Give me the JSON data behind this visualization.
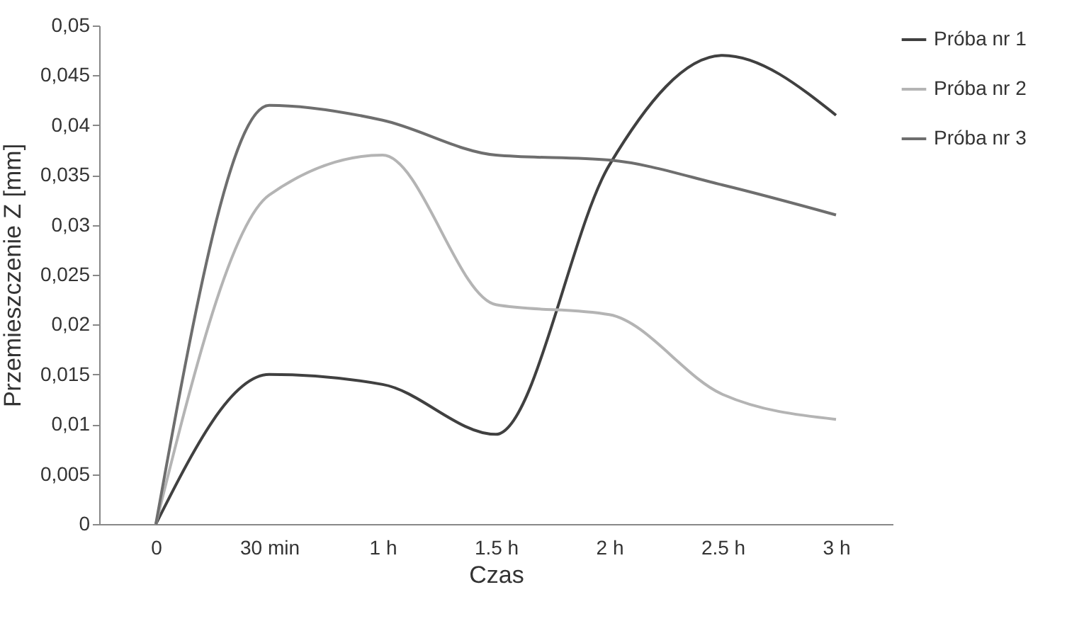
{
  "chart_data": {
    "type": "line",
    "xlabel": "Czas",
    "ylabel": "Przemieszczenie Z [mm]",
    "categories": [
      "0",
      "30 min",
      "1 h",
      "1.5 h",
      "2 h",
      "2.5 h",
      "3 h"
    ],
    "series": [
      {
        "name": "Próba nr 1",
        "color": "#404040",
        "values": [
          0,
          0.015,
          0.014,
          0.009,
          0.036,
          0.047,
          0.041
        ]
      },
      {
        "name": "Próba nr 2",
        "color": "#b4b4b4",
        "values": [
          0,
          0.033,
          0.037,
          0.022,
          0.021,
          0.013,
          0.0105
        ]
      },
      {
        "name": "Próba nr 3",
        "color": "#6e6e6e",
        "values": [
          0,
          0.042,
          0.0405,
          0.037,
          0.0365,
          0.034,
          0.031
        ]
      }
    ],
    "ylim": [
      0,
      0.05
    ],
    "yticks": [
      {
        "value": 0,
        "label": "0"
      },
      {
        "value": 0.005,
        "label": "0,005"
      },
      {
        "value": 0.01,
        "label": "0,01"
      },
      {
        "value": 0.015,
        "label": "0,015"
      },
      {
        "value": 0.02,
        "label": "0,02"
      },
      {
        "value": 0.025,
        "label": "0,025"
      },
      {
        "value": 0.03,
        "label": "0,03"
      },
      {
        "value": 0.035,
        "label": "0,035"
      },
      {
        "value": 0.04,
        "label": "0,04"
      },
      {
        "value": 0.045,
        "label": "0,045"
      },
      {
        "value": 0.05,
        "label": "0,05"
      }
    ],
    "legend": "right",
    "grid": false,
    "marker": "none",
    "line_style": "solid"
  }
}
